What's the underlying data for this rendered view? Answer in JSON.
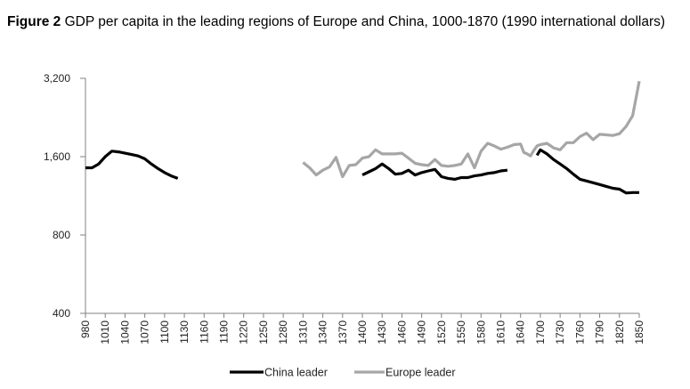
{
  "chart_data": {
    "type": "line",
    "title_label": "Figure 2",
    "title": "GDP per capita in the leading regions of Europe and China, 1000-1870 (1990 international dollars)",
    "xlabel": "",
    "ylabel": "",
    "yscale": "log",
    "yticks": [
      400,
      800,
      1600,
      3200
    ],
    "ylim": [
      400,
      3200
    ],
    "grid": false,
    "legend_position": "bottom",
    "x_tick_labels": [
      "980",
      "1010",
      "1040",
      "1070",
      "1100",
      "1130",
      "1160",
      "1190",
      "1220",
      "1250",
      "1280",
      "1310",
      "1340",
      "1370",
      "1400",
      "1430",
      "1460",
      "1490",
      "1520",
      "1550",
      "1580",
      "1610",
      "1640",
      "1700",
      "1730",
      "1760",
      "1790",
      "1820",
      "1850"
    ],
    "series": [
      {
        "name": "China leader",
        "color": "#000000",
        "segments": [
          [
            [
              "980",
              1450
            ],
            [
              "990",
              1450
            ],
            [
              "1000",
              1500
            ],
            [
              "1010",
              1600
            ],
            [
              "1020",
              1680
            ],
            [
              "1030",
              1670
            ],
            [
              "1040",
              1650
            ],
            [
              "1050",
              1630
            ],
            [
              "1060",
              1610
            ],
            [
              "1070",
              1570
            ],
            [
              "1080",
              1500
            ],
            [
              "1090",
              1440
            ],
            [
              "1100",
              1390
            ],
            [
              "1110",
              1350
            ],
            [
              "1120",
              1320
            ]
          ],
          [
            [
              "1400",
              1360
            ],
            [
              "1410",
              1400
            ],
            [
              "1420",
              1440
            ],
            [
              "1430",
              1500
            ],
            [
              "1440",
              1440
            ],
            [
              "1450",
              1370
            ],
            [
              "1460",
              1380
            ],
            [
              "1470",
              1420
            ],
            [
              "1480",
              1360
            ],
            [
              "1490",
              1390
            ],
            [
              "1500",
              1410
            ],
            [
              "1510",
              1430
            ],
            [
              "1520",
              1340
            ],
            [
              "1530",
              1320
            ],
            [
              "1540",
              1310
            ],
            [
              "1550",
              1330
            ],
            [
              "1560",
              1330
            ],
            [
              "1570",
              1350
            ],
            [
              "1580",
              1360
            ],
            [
              "1590",
              1380
            ],
            [
              "1600",
              1390
            ],
            [
              "1610",
              1410
            ],
            [
              "1620",
              1420
            ]
          ],
          [
            [
              "1690",
              1620
            ],
            [
              "1700",
              1700
            ],
            [
              "1710",
              1640
            ],
            [
              "1720",
              1560
            ],
            [
              "1730",
              1500
            ],
            [
              "1740",
              1440
            ],
            [
              "1750",
              1370
            ],
            [
              "1760",
              1310
            ],
            [
              "1770",
              1290
            ],
            [
              "1780",
              1270
            ],
            [
              "1790",
              1250
            ],
            [
              "1800",
              1230
            ],
            [
              "1810",
              1210
            ],
            [
              "1820",
              1200
            ],
            [
              "1830",
              1160
            ],
            [
              "1840",
              1165
            ],
            [
              "1850",
              1165
            ]
          ]
        ]
      },
      {
        "name": "Europe leader",
        "color": "#a6a6a6",
        "segments": [
          [
            [
              "1310",
              1520
            ],
            [
              "1320",
              1450
            ],
            [
              "1330",
              1360
            ],
            [
              "1340",
              1420
            ],
            [
              "1350",
              1460
            ],
            [
              "1360",
              1590
            ],
            [
              "1370",
              1340
            ],
            [
              "1380",
              1480
            ],
            [
              "1390",
              1490
            ],
            [
              "1400",
              1580
            ],
            [
              "1410",
              1600
            ],
            [
              "1420",
              1700
            ],
            [
              "1430",
              1640
            ],
            [
              "1440",
              1640
            ],
            [
              "1450",
              1640
            ],
            [
              "1460",
              1650
            ],
            [
              "1470",
              1580
            ],
            [
              "1480",
              1510
            ],
            [
              "1490",
              1490
            ],
            [
              "1500",
              1480
            ],
            [
              "1510",
              1560
            ],
            [
              "1520",
              1480
            ],
            [
              "1530",
              1470
            ],
            [
              "1540",
              1480
            ],
            [
              "1550",
              1500
            ],
            [
              "1560",
              1640
            ],
            [
              "1570",
              1450
            ],
            [
              "1580",
              1680
            ],
            [
              "1590",
              1800
            ],
            [
              "1600",
              1760
            ],
            [
              "1610",
              1710
            ],
            [
              "1620",
              1740
            ],
            [
              "1630",
              1780
            ],
            [
              "1640",
              1790
            ],
            [
              "1650",
              1660
            ],
            [
              "1660",
              1640
            ],
            [
              "1670",
              1610
            ],
            [
              "1680",
              1690
            ],
            [
              "1690",
              1760
            ],
            [
              "1700",
              1780
            ],
            [
              "1710",
              1800
            ],
            [
              "1720",
              1730
            ],
            [
              "1730",
              1700
            ],
            [
              "1740",
              1810
            ],
            [
              "1750",
              1810
            ],
            [
              "1760",
              1910
            ],
            [
              "1770",
              1970
            ],
            [
              "1780",
              1860
            ],
            [
              "1790",
              1950
            ],
            [
              "1800",
              1940
            ],
            [
              "1810",
              1930
            ],
            [
              "1820",
              1960
            ],
            [
              "1830",
              2090
            ],
            [
              "1840",
              2300
            ],
            [
              "1850",
              3120
            ]
          ]
        ]
      }
    ]
  }
}
